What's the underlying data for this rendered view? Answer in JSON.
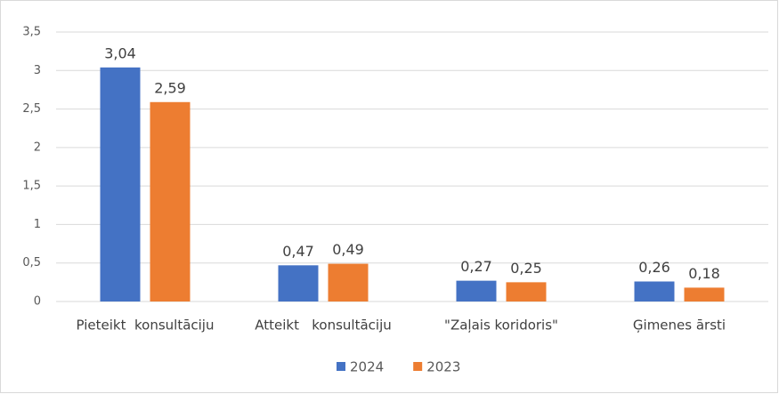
{
  "chart_data": {
    "type": "bar",
    "categories": [
      "Pieteikt  konsultāciju",
      "Atteikt   konsultāciju",
      "\"Zaļais koridoris\"",
      "Ģimenes ārsti"
    ],
    "series": [
      {
        "name": "2024",
        "color": "#4472c4",
        "values": [
          3.04,
          0.47,
          0.27,
          0.26
        ],
        "value_labels": [
          "3,04",
          "0,47",
          "0,27",
          "0,26"
        ]
      },
      {
        "name": "2023",
        "color": "#ed7d31",
        "values": [
          2.59,
          0.49,
          0.25,
          0.18
        ],
        "value_labels": [
          "2,59",
          "0,49",
          "0,25",
          "0,18"
        ]
      }
    ],
    "ylim": [
      0,
      3.5
    ],
    "yticks": [
      0,
      {
        "value": 0.5,
        "label": "0,5"
      },
      1,
      {
        "value": 1.5,
        "label": "1,5"
      },
      2,
      {
        "value": 2.5,
        "label": "2,5"
      },
      3,
      {
        "value": 3.5,
        "label": "3,5"
      }
    ],
    "grid": true,
    "legend": "bottom"
  }
}
